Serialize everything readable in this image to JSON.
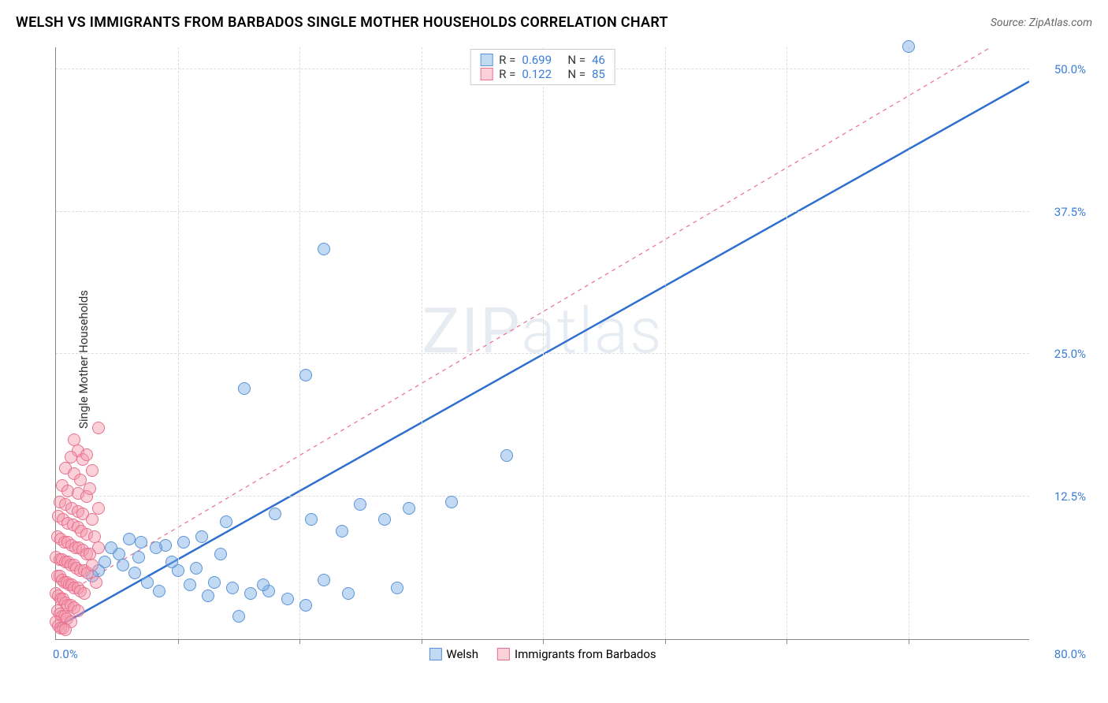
{
  "header": {
    "title": "WELSH VS IMMIGRANTS FROM BARBADOS SINGLE MOTHER HOUSEHOLDS CORRELATION CHART",
    "title_color": "#2a2a2a",
    "source_prefix": "Source: ",
    "source_name": "ZipAtlas.com",
    "source_color": "#666666"
  },
  "chart": {
    "type": "scatter",
    "watermark": "ZIPatlas",
    "background_color": "#ffffff",
    "grid_color": "#dddddd",
    "axis_color": "#888888",
    "y_axis": {
      "label": "Single Mother Households",
      "label_fontsize": 15,
      "min": 0,
      "max": 52,
      "ticks": [
        12.5,
        25.0,
        37.5,
        50.0
      ],
      "tick_labels": [
        "12.5%",
        "25.0%",
        "37.5%",
        "50.0%"
      ],
      "tick_color": "#3b7dd8"
    },
    "x_axis": {
      "min": 0,
      "max": 80,
      "min_label": "0.0%",
      "max_label": "80.0%",
      "tick_positions": [
        10,
        20,
        30,
        40,
        50,
        60,
        70
      ],
      "tick_color": "#3b7dd8"
    },
    "series": [
      {
        "name": "Welsh",
        "marker_fill": "rgba(120,170,230,0.45)",
        "marker_stroke": "#5b94d6",
        "marker_radius": 8,
        "trend_color": "#2f6fd0",
        "trend_width": 2.5,
        "trend_dash": "none",
        "trend_start_y": 1.0,
        "trend_end_y": 49.0,
        "R": "0.699",
        "N": "46",
        "points": [
          [
            70.0,
            52.0
          ],
          [
            22.0,
            34.2
          ],
          [
            20.5,
            23.2
          ],
          [
            15.5,
            22.0
          ],
          [
            37.0,
            16.1
          ],
          [
            25.0,
            11.8
          ],
          [
            29.0,
            11.5
          ],
          [
            32.5,
            12.0
          ],
          [
            23.5,
            9.5
          ],
          [
            27.0,
            10.5
          ],
          [
            18.0,
            11.0
          ],
          [
            14.0,
            10.3
          ],
          [
            12.0,
            9.0
          ],
          [
            10.5,
            8.5
          ],
          [
            9.0,
            8.2
          ],
          [
            8.2,
            8.0
          ],
          [
            7.0,
            8.5
          ],
          [
            6.0,
            8.8
          ],
          [
            6.8,
            7.2
          ],
          [
            5.2,
            7.5
          ],
          [
            4.5,
            8.0
          ],
          [
            4.0,
            6.8
          ],
          [
            3.5,
            6.0
          ],
          [
            3.0,
            5.5
          ],
          [
            10.0,
            6.0
          ],
          [
            11.5,
            6.2
          ],
          [
            13.0,
            5.0
          ],
          [
            14.5,
            4.5
          ],
          [
            16.0,
            4.0
          ],
          [
            17.5,
            4.2
          ],
          [
            19.0,
            3.5
          ],
          [
            20.5,
            3.0
          ],
          [
            22.0,
            5.2
          ],
          [
            15.0,
            2.0
          ],
          [
            17.0,
            4.8
          ],
          [
            12.5,
            3.8
          ],
          [
            11.0,
            4.8
          ],
          [
            8.5,
            4.2
          ],
          [
            7.5,
            5.0
          ],
          [
            6.5,
            5.8
          ],
          [
            5.5,
            6.5
          ],
          [
            9.5,
            6.8
          ],
          [
            13.5,
            7.5
          ],
          [
            28.0,
            4.5
          ],
          [
            24.0,
            4.0
          ],
          [
            21.0,
            10.5
          ]
        ]
      },
      {
        "name": "Immigrants from Barbados",
        "marker_fill": "rgba(245,150,170,0.45)",
        "marker_stroke": "#e8718f",
        "marker_radius": 8,
        "trend_color": "#e8718f",
        "trend_width": 1.2,
        "trend_dash": "5,5",
        "trend_start_y": 3.5,
        "trend_end_y": 54.0,
        "R": "0.122",
        "N": "85",
        "points": [
          [
            3.5,
            18.5
          ],
          [
            1.8,
            16.5
          ],
          [
            1.2,
            16.0
          ],
          [
            2.2,
            15.8
          ],
          [
            0.8,
            15.0
          ],
          [
            1.5,
            14.5
          ],
          [
            2.0,
            14.0
          ],
          [
            0.5,
            13.5
          ],
          [
            1.0,
            13.0
          ],
          [
            1.8,
            12.8
          ],
          [
            2.5,
            12.5
          ],
          [
            0.3,
            12.0
          ],
          [
            0.8,
            11.8
          ],
          [
            1.3,
            11.5
          ],
          [
            1.8,
            11.2
          ],
          [
            2.2,
            11.0
          ],
          [
            0.2,
            10.8
          ],
          [
            0.6,
            10.5
          ],
          [
            1.0,
            10.2
          ],
          [
            1.4,
            10.0
          ],
          [
            1.8,
            9.8
          ],
          [
            2.1,
            9.5
          ],
          [
            2.5,
            9.2
          ],
          [
            0.1,
            9.0
          ],
          [
            0.4,
            8.8
          ],
          [
            0.7,
            8.5
          ],
          [
            1.0,
            8.5
          ],
          [
            1.3,
            8.2
          ],
          [
            1.6,
            8.0
          ],
          [
            1.9,
            8.0
          ],
          [
            2.2,
            7.8
          ],
          [
            2.5,
            7.5
          ],
          [
            2.8,
            7.5
          ],
          [
            0.0,
            7.2
          ],
          [
            0.3,
            7.0
          ],
          [
            0.5,
            7.0
          ],
          [
            0.8,
            6.8
          ],
          [
            1.0,
            6.8
          ],
          [
            1.2,
            6.5
          ],
          [
            1.5,
            6.5
          ],
          [
            1.7,
            6.2
          ],
          [
            2.0,
            6.0
          ],
          [
            2.3,
            6.0
          ],
          [
            2.6,
            5.8
          ],
          [
            0.1,
            5.5
          ],
          [
            0.3,
            5.5
          ],
          [
            0.5,
            5.2
          ],
          [
            0.7,
            5.0
          ],
          [
            0.9,
            5.0
          ],
          [
            1.1,
            4.8
          ],
          [
            1.3,
            4.8
          ],
          [
            1.5,
            4.5
          ],
          [
            1.8,
            4.5
          ],
          [
            2.0,
            4.2
          ],
          [
            2.3,
            4.0
          ],
          [
            0.0,
            4.0
          ],
          [
            0.2,
            3.8
          ],
          [
            0.4,
            3.5
          ],
          [
            0.6,
            3.5
          ],
          [
            0.8,
            3.2
          ],
          [
            1.0,
            3.0
          ],
          [
            1.2,
            3.0
          ],
          [
            1.5,
            2.8
          ],
          [
            1.8,
            2.5
          ],
          [
            0.1,
            2.5
          ],
          [
            0.3,
            2.2
          ],
          [
            0.5,
            2.0
          ],
          [
            0.7,
            2.0
          ],
          [
            0.9,
            1.8
          ],
          [
            1.2,
            1.5
          ],
          [
            0.0,
            1.5
          ],
          [
            0.2,
            1.2
          ],
          [
            0.4,
            1.0
          ],
          [
            0.6,
            1.0
          ],
          [
            0.8,
            0.8
          ],
          [
            3.0,
            10.5
          ],
          [
            3.2,
            9.0
          ],
          [
            3.5,
            8.0
          ],
          [
            3.0,
            6.5
          ],
          [
            3.3,
            5.0
          ],
          [
            3.5,
            11.5
          ],
          [
            2.8,
            13.2
          ],
          [
            3.0,
            14.8
          ],
          [
            1.5,
            17.5
          ],
          [
            2.5,
            16.2
          ]
        ]
      }
    ],
    "legend_top": {
      "label_R": "R =",
      "label_N": "N =",
      "text_color": "#333333",
      "value_color": "#3b7dd8"
    },
    "legend_bottom": {
      "items": [
        "Welsh",
        "Immigrants from Barbados"
      ]
    }
  }
}
